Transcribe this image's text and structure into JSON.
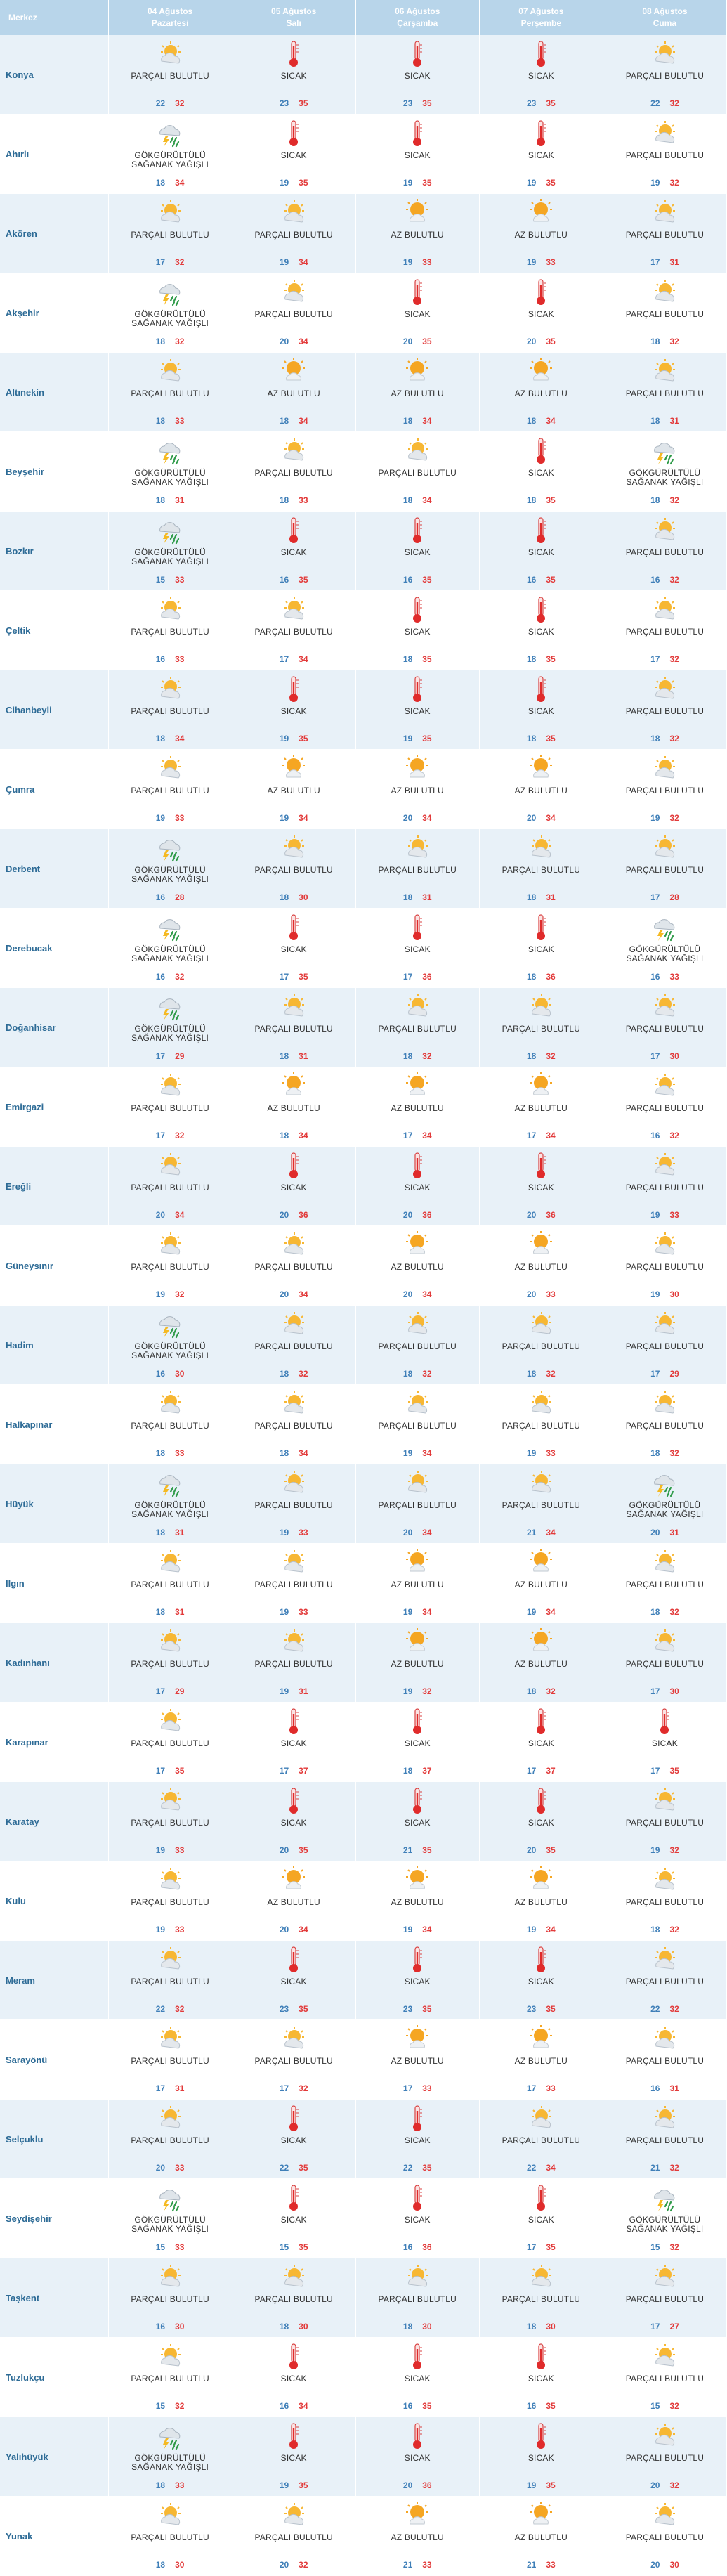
{
  "header": {
    "city_col": "Merkez",
    "days": [
      {
        "date": "04 Ağustos",
        "weekday": "Pazartesi"
      },
      {
        "date": "05 Ağustos",
        "weekday": "Salı"
      },
      {
        "date": "06 Ağustos",
        "weekday": "Çarşamba"
      },
      {
        "date": "07 Ağustos",
        "weekday": "Perşembe"
      },
      {
        "date": "08 Ağustos",
        "weekday": "Cuma"
      }
    ]
  },
  "labels": {
    "P": [
      "PARÇALI BULUTLU"
    ],
    "S": [
      "SICAK"
    ],
    "A": [
      "AZ BULUTLU"
    ],
    "G": [
      "GÖKGÜRÜLTÜLÜ",
      "SAĞANAK YAĞIŞLI"
    ]
  },
  "icons": {
    "P": "partly-cloudy-icon",
    "S": "thermometer-hot-icon",
    "A": "mostly-sunny-icon",
    "G": "thunderstorm-rain-icon"
  },
  "colors": {
    "min": "#3f7fb8",
    "max": "#e23a3a",
    "header": "#b8d5ea",
    "city": "#2d6b96"
  },
  "rows": [
    {
      "city": "Konya",
      "days": [
        [
          "P",
          22,
          32
        ],
        [
          "S",
          23,
          35
        ],
        [
          "S",
          23,
          35
        ],
        [
          "S",
          23,
          35
        ],
        [
          "P",
          22,
          32
        ]
      ]
    },
    {
      "city": "Ahırlı",
      "days": [
        [
          "G",
          18,
          34
        ],
        [
          "S",
          19,
          35
        ],
        [
          "S",
          19,
          35
        ],
        [
          "S",
          19,
          35
        ],
        [
          "P",
          19,
          32
        ]
      ]
    },
    {
      "city": "Akören",
      "days": [
        [
          "P",
          17,
          32
        ],
        [
          "P",
          19,
          34
        ],
        [
          "A",
          19,
          33
        ],
        [
          "A",
          19,
          33
        ],
        [
          "P",
          17,
          31
        ]
      ]
    },
    {
      "city": "Akşehir",
      "days": [
        [
          "G",
          18,
          32
        ],
        [
          "P",
          20,
          34
        ],
        [
          "S",
          20,
          35
        ],
        [
          "S",
          20,
          35
        ],
        [
          "P",
          18,
          32
        ]
      ]
    },
    {
      "city": "Altınekin",
      "days": [
        [
          "P",
          18,
          33
        ],
        [
          "A",
          18,
          34
        ],
        [
          "A",
          18,
          34
        ],
        [
          "A",
          18,
          34
        ],
        [
          "P",
          18,
          31
        ]
      ]
    },
    {
      "city": "Beyşehir",
      "days": [
        [
          "G",
          18,
          31
        ],
        [
          "P",
          18,
          33
        ],
        [
          "P",
          18,
          34
        ],
        [
          "S",
          18,
          35
        ],
        [
          "G",
          18,
          32
        ]
      ]
    },
    {
      "city": "Bozkır",
      "days": [
        [
          "G",
          15,
          33
        ],
        [
          "S",
          16,
          35
        ],
        [
          "S",
          16,
          35
        ],
        [
          "S",
          16,
          35
        ],
        [
          "P",
          16,
          32
        ]
      ]
    },
    {
      "city": "Çeltik",
      "days": [
        [
          "P",
          16,
          33
        ],
        [
          "P",
          17,
          34
        ],
        [
          "S",
          18,
          35
        ],
        [
          "S",
          18,
          35
        ],
        [
          "P",
          17,
          32
        ]
      ]
    },
    {
      "city": "Cihanbeyli",
      "days": [
        [
          "P",
          18,
          34
        ],
        [
          "S",
          19,
          35
        ],
        [
          "S",
          19,
          35
        ],
        [
          "S",
          18,
          35
        ],
        [
          "P",
          18,
          32
        ]
      ]
    },
    {
      "city": "Çumra",
      "days": [
        [
          "P",
          19,
          33
        ],
        [
          "A",
          19,
          34
        ],
        [
          "A",
          20,
          34
        ],
        [
          "A",
          20,
          34
        ],
        [
          "P",
          19,
          32
        ]
      ]
    },
    {
      "city": "Derbent",
      "days": [
        [
          "G",
          16,
          28
        ],
        [
          "P",
          18,
          30
        ],
        [
          "P",
          18,
          31
        ],
        [
          "P",
          18,
          31
        ],
        [
          "P",
          17,
          28
        ]
      ]
    },
    {
      "city": "Derebucak",
      "days": [
        [
          "G",
          16,
          32
        ],
        [
          "S",
          17,
          35
        ],
        [
          "S",
          17,
          36
        ],
        [
          "S",
          18,
          36
        ],
        [
          "G",
          16,
          33
        ]
      ]
    },
    {
      "city": "Doğanhisar",
      "days": [
        [
          "G",
          17,
          29
        ],
        [
          "P",
          18,
          31
        ],
        [
          "P",
          18,
          32
        ],
        [
          "P",
          18,
          32
        ],
        [
          "P",
          17,
          30
        ]
      ]
    },
    {
      "city": "Emirgazi",
      "days": [
        [
          "P",
          17,
          32
        ],
        [
          "A",
          18,
          34
        ],
        [
          "A",
          17,
          34
        ],
        [
          "A",
          17,
          34
        ],
        [
          "P",
          16,
          32
        ]
      ]
    },
    {
      "city": "Ereğli",
      "days": [
        [
          "P",
          20,
          34
        ],
        [
          "S",
          20,
          36
        ],
        [
          "S",
          20,
          36
        ],
        [
          "S",
          20,
          36
        ],
        [
          "P",
          19,
          33
        ]
      ]
    },
    {
      "city": "Güneysınır",
      "days": [
        [
          "P",
          19,
          32
        ],
        [
          "P",
          20,
          34
        ],
        [
          "A",
          20,
          34
        ],
        [
          "A",
          20,
          33
        ],
        [
          "P",
          19,
          30
        ]
      ]
    },
    {
      "city": "Hadim",
      "days": [
        [
          "G",
          16,
          30
        ],
        [
          "P",
          18,
          32
        ],
        [
          "P",
          18,
          32
        ],
        [
          "P",
          18,
          32
        ],
        [
          "P",
          17,
          29
        ]
      ]
    },
    {
      "city": "Halkapınar",
      "days": [
        [
          "P",
          18,
          33
        ],
        [
          "P",
          18,
          34
        ],
        [
          "P",
          19,
          34
        ],
        [
          "P",
          19,
          33
        ],
        [
          "P",
          18,
          32
        ]
      ]
    },
    {
      "city": "Hüyük",
      "days": [
        [
          "G",
          18,
          31
        ],
        [
          "P",
          19,
          33
        ],
        [
          "P",
          20,
          34
        ],
        [
          "P",
          21,
          34
        ],
        [
          "G",
          20,
          31
        ]
      ]
    },
    {
      "city": "Ilgın",
      "days": [
        [
          "P",
          18,
          31
        ],
        [
          "P",
          19,
          33
        ],
        [
          "A",
          19,
          34
        ],
        [
          "A",
          19,
          34
        ],
        [
          "P",
          18,
          32
        ]
      ]
    },
    {
      "city": "Kadınhanı",
      "days": [
        [
          "P",
          17,
          29
        ],
        [
          "P",
          19,
          31
        ],
        [
          "A",
          19,
          32
        ],
        [
          "A",
          18,
          32
        ],
        [
          "P",
          17,
          30
        ]
      ]
    },
    {
      "city": "Karapınar",
      "days": [
        [
          "P",
          17,
          35
        ],
        [
          "S",
          17,
          37
        ],
        [
          "S",
          18,
          37
        ],
        [
          "S",
          17,
          37
        ],
        [
          "S",
          17,
          35
        ]
      ]
    },
    {
      "city": "Karatay",
      "days": [
        [
          "P",
          19,
          33
        ],
        [
          "S",
          20,
          35
        ],
        [
          "S",
          21,
          35
        ],
        [
          "S",
          20,
          35
        ],
        [
          "P",
          19,
          32
        ]
      ]
    },
    {
      "city": "Kulu",
      "days": [
        [
          "P",
          19,
          33
        ],
        [
          "A",
          20,
          34
        ],
        [
          "A",
          19,
          34
        ],
        [
          "A",
          19,
          34
        ],
        [
          "P",
          18,
          32
        ]
      ]
    },
    {
      "city": "Meram",
      "days": [
        [
          "P",
          22,
          32
        ],
        [
          "S",
          23,
          35
        ],
        [
          "S",
          23,
          35
        ],
        [
          "S",
          23,
          35
        ],
        [
          "P",
          22,
          32
        ]
      ]
    },
    {
      "city": "Sarayönü",
      "days": [
        [
          "P",
          17,
          31
        ],
        [
          "P",
          17,
          32
        ],
        [
          "A",
          17,
          33
        ],
        [
          "A",
          17,
          33
        ],
        [
          "P",
          16,
          31
        ]
      ]
    },
    {
      "city": "Selçuklu",
      "days": [
        [
          "P",
          20,
          33
        ],
        [
          "S",
          22,
          35
        ],
        [
          "S",
          22,
          35
        ],
        [
          "P",
          22,
          34
        ],
        [
          "P",
          21,
          32
        ]
      ]
    },
    {
      "city": "Seydişehir",
      "days": [
        [
          "G",
          15,
          33
        ],
        [
          "S",
          15,
          35
        ],
        [
          "S",
          16,
          36
        ],
        [
          "S",
          17,
          35
        ],
        [
          "G",
          15,
          32
        ]
      ]
    },
    {
      "city": "Taşkent",
      "days": [
        [
          "P",
          16,
          30
        ],
        [
          "P",
          18,
          30
        ],
        [
          "P",
          18,
          30
        ],
        [
          "P",
          18,
          30
        ],
        [
          "P",
          17,
          27
        ]
      ]
    },
    {
      "city": "Tuzlukçu",
      "days": [
        [
          "P",
          15,
          32
        ],
        [
          "S",
          16,
          34
        ],
        [
          "S",
          16,
          35
        ],
        [
          "S",
          16,
          35
        ],
        [
          "P",
          15,
          32
        ]
      ]
    },
    {
      "city": "Yalıhüyük",
      "days": [
        [
          "G",
          18,
          33
        ],
        [
          "S",
          19,
          35
        ],
        [
          "S",
          20,
          36
        ],
        [
          "S",
          19,
          35
        ],
        [
          "P",
          20,
          32
        ]
      ]
    },
    {
      "city": "Yunak",
      "days": [
        [
          "P",
          18,
          30
        ],
        [
          "P",
          20,
          32
        ],
        [
          "A",
          21,
          33
        ],
        [
          "A",
          21,
          33
        ],
        [
          "P",
          20,
          30
        ]
      ]
    }
  ]
}
